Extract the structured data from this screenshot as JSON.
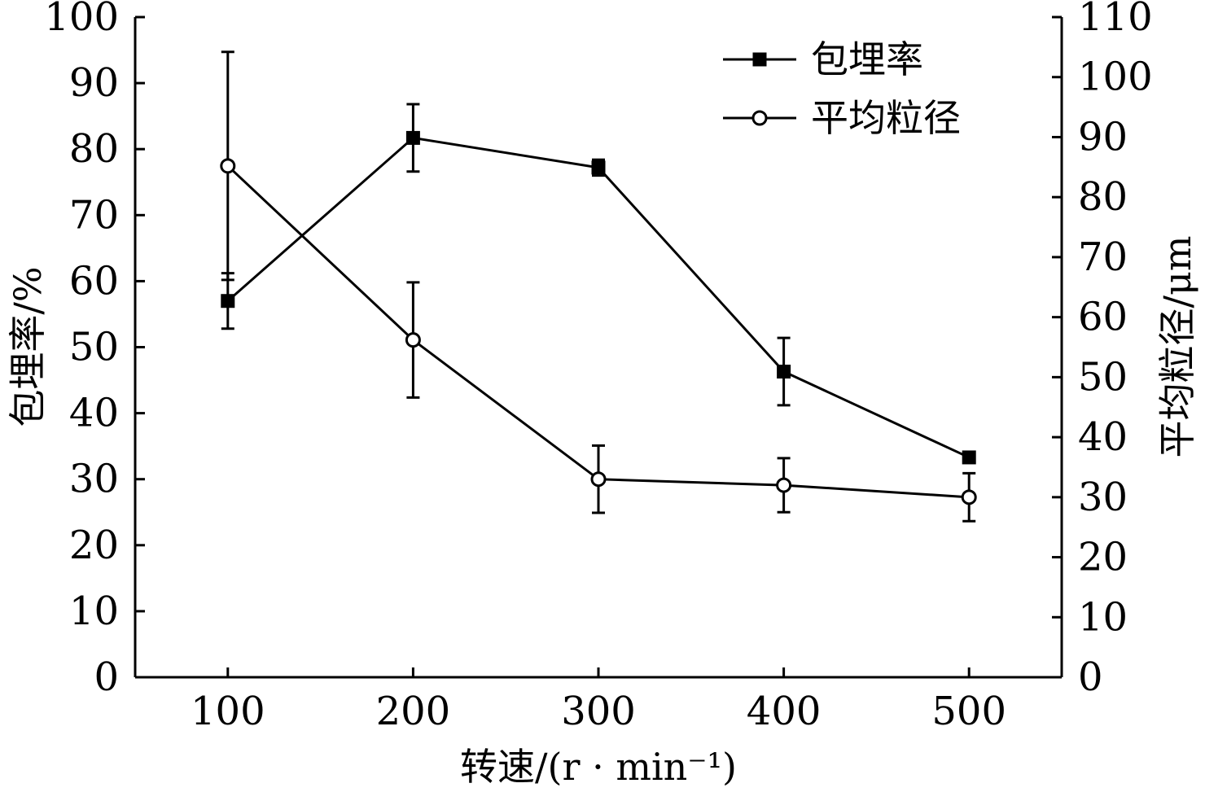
{
  "chart_data": {
    "type": "line",
    "xlabel": "转速/(r · min⁻¹)",
    "ylabel": "包埋率/%",
    "y2label": "平均粒径/μm",
    "x": [
      100,
      200,
      300,
      400,
      500
    ],
    "xticks": [
      100,
      200,
      300,
      400,
      500
    ],
    "xlim": [
      50,
      550
    ],
    "ylim": [
      0,
      100
    ],
    "yticks": [
      0,
      10,
      20,
      30,
      40,
      50,
      60,
      70,
      80,
      90,
      100
    ],
    "y2lim": [
      0,
      110
    ],
    "y2ticks": [
      0,
      10,
      20,
      30,
      40,
      50,
      60,
      70,
      80,
      90,
      100,
      110
    ],
    "grid": false,
    "legend_position": "top-right",
    "series": [
      {
        "name": "包埋率",
        "axis": "left",
        "marker": "filled-square",
        "values": [
          57,
          81.7,
          77.2,
          46.3,
          33.3
        ],
        "error": [
          4.2,
          5.1,
          1.2,
          5.1,
          0.5
        ],
        "color": "#000000"
      },
      {
        "name": "平均粒径",
        "axis": "right",
        "marker": "open-circle",
        "values": [
          85.2,
          56.2,
          33,
          32,
          30
        ],
        "error": [
          19,
          9.6,
          5.6,
          4.5,
          4
        ],
        "color": "#000000"
      }
    ]
  }
}
